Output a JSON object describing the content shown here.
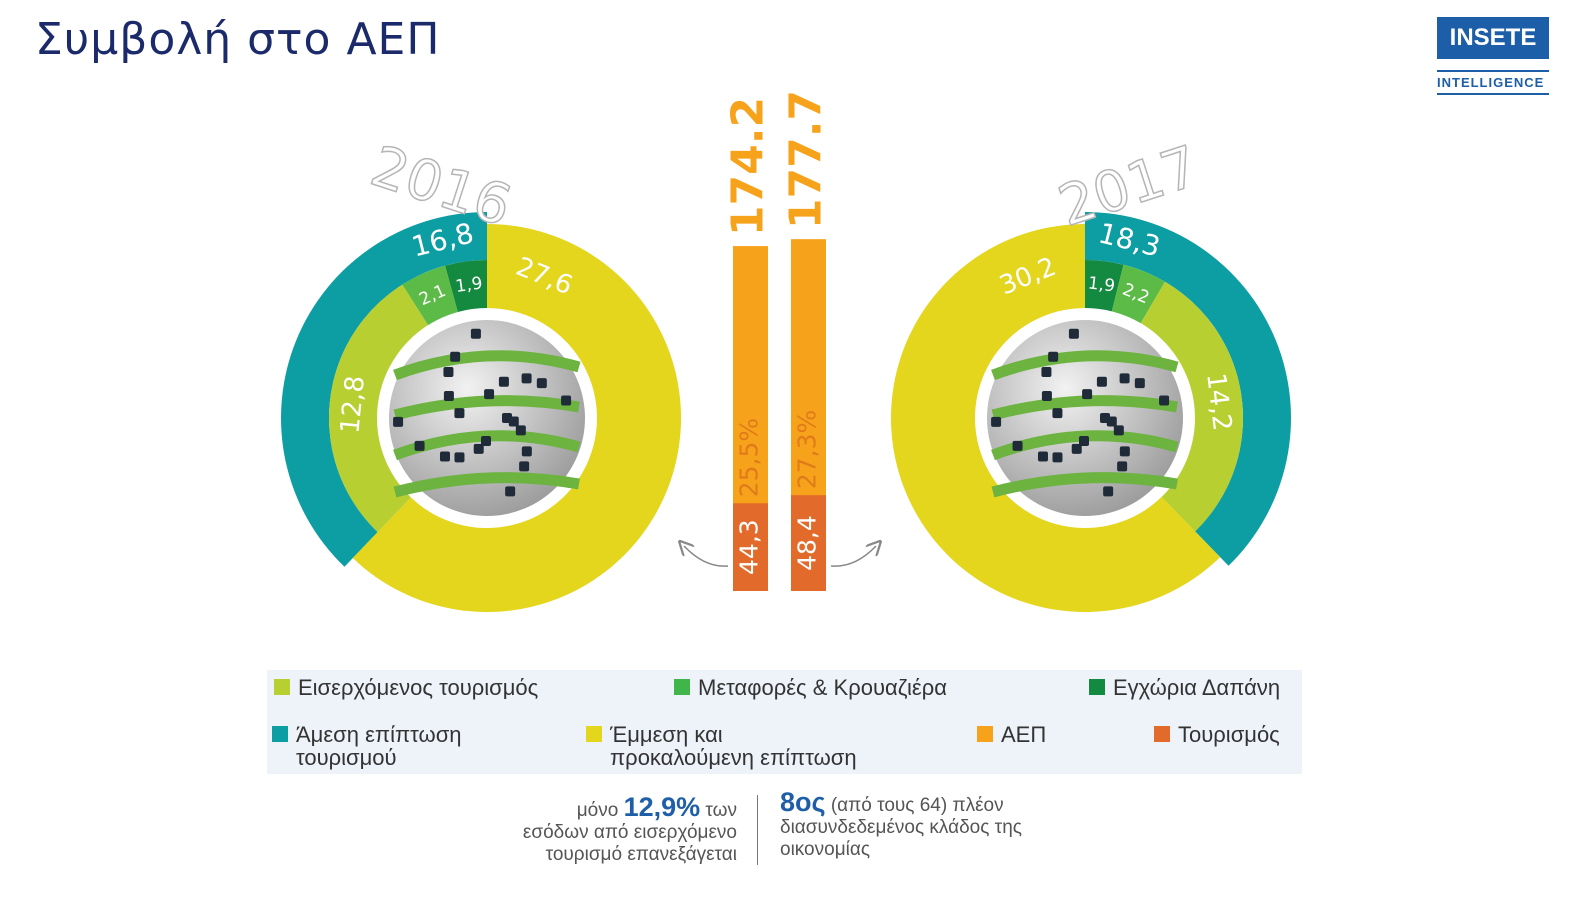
{
  "header": {
    "title": "Συμβολή στο ΑΕΠ",
    "logo_top": "INSETE",
    "logo_bottom": "INTELLIGENCE"
  },
  "chart_data": [
    {
      "type": "donut",
      "title": "2016",
      "direction": "counterclockwise",
      "components": [
        {
          "value": 1.9,
          "label": "1,9",
          "color": "#138a3f"
        },
        {
          "value": 2.1,
          "label": "2,1",
          "color": "#5cba47"
        },
        {
          "value": 12.8,
          "label": "12,8",
          "color": "#b8cf32"
        }
      ],
      "direct": {
        "value": 16.8,
        "label": "16,8",
        "color": "#0c9ea3"
      },
      "indirect": {
        "value": 27.6,
        "label": "27,6",
        "color": "#e4d51d"
      }
    },
    {
      "type": "bar",
      "series": [
        {
          "color": "#f7a21b",
          "values": [
            174.2,
            177.7
          ]
        },
        {
          "color": "#e26a2a",
          "values": [
            44.3,
            48.4
          ],
          "value_labels": [
            "44,3",
            "48,4"
          ]
        }
      ],
      "share_labels": [
        "25,5%",
        "27,3%"
      ]
    },
    {
      "type": "donut",
      "title": "2017",
      "direction": "clockwise",
      "components": [
        {
          "value": 1.9,
          "label": "1,9",
          "color": "#138a3f"
        },
        {
          "value": 2.2,
          "label": "2,2",
          "color": "#5cba47"
        },
        {
          "value": 14.2,
          "label": "14,2",
          "color": "#b8cf32"
        }
      ],
      "direct": {
        "value": 18.3,
        "label": "18,3",
        "color": "#0c9ea3"
      },
      "indirect": {
        "value": 30.2,
        "label": "30,2",
        "color": "#e4d51d"
      }
    }
  ],
  "legend": [
    {
      "lines": [
        "Εισερχόμενος τουρισμός"
      ],
      "color": "#b8cf32"
    },
    {
      "lines": [
        "Μεταφορές & Κρουαζιέρα"
      ],
      "color": "#3fb54a"
    },
    {
      "lines": [
        "Εγχώρια Δαπάνη"
      ],
      "color": "#138a3f"
    },
    {
      "lines": [
        "Άμεση επίπτωση",
        "τουρισμού"
      ],
      "color": "#0c9ea3"
    },
    {
      "lines": [
        "Έμμεση και",
        "προκαλούμενη επίπτωση"
      ],
      "color": "#e4d51d"
    },
    {
      "lines": [
        "ΑΕΠ"
      ],
      "color": "#f7a21b"
    },
    {
      "lines": [
        "Τουρισμός"
      ],
      "color": "#e26a2a"
    }
  ],
  "notes": {
    "left": {
      "pre": "μόνο",
      "highlight": "12,9%",
      "post": "των",
      "rest": [
        "εσόδων από εισερχόμενο",
        "τουρισμό επανεξάγεται"
      ]
    },
    "right": {
      "highlight": "8ος",
      "post": "(από τους 64) πλέον",
      "rest": [
        "διασυνδεδεμένος κλάδος της",
        "οικονομίας"
      ]
    }
  }
}
